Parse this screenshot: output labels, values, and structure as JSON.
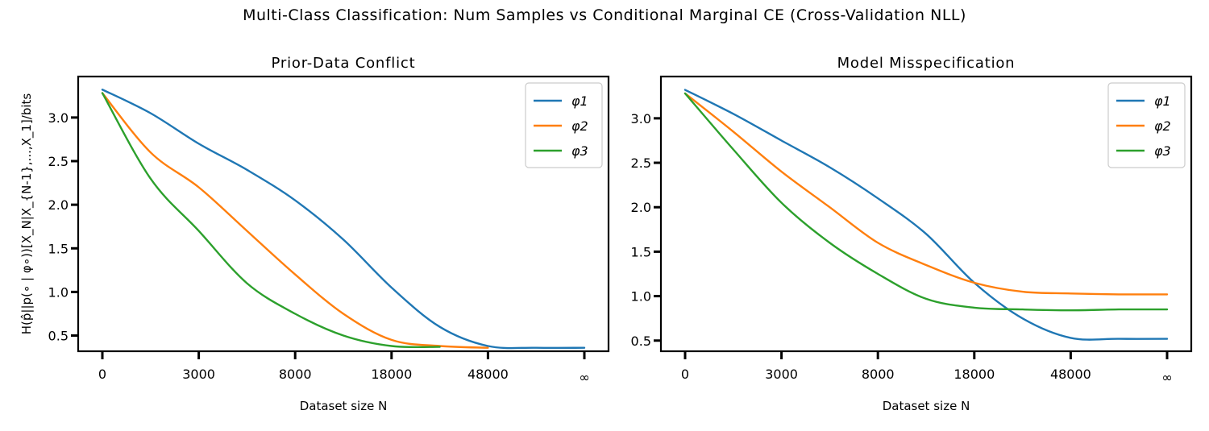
{
  "suptitle": "Multi-Class Classification: Num Samples vs Conditional Marginal CE (Cross-Validation NLL)",
  "colors": {
    "phi1": "#1f77b4",
    "phi2": "#ff7f0e",
    "phi3": "#2ca02c"
  },
  "chart_data": [
    {
      "type": "line",
      "title": "Prior-Data Conflict",
      "xlabel": "Dataset size N",
      "ylabel": "H(p̂||p(∘ | φ∘))[X_N|X_{N-1},...,X_1]/bits",
      "xticks": [
        "0",
        "3000",
        "8000",
        "18000",
        "48000",
        "∞"
      ],
      "yticks": [
        0.5,
        1.0,
        1.5,
        2.0,
        2.5,
        3.0
      ],
      "ylim": [
        0.32,
        3.47
      ],
      "legend_loc": "upper right",
      "x": [
        0,
        0.5,
        1,
        1.5,
        2,
        2.5,
        3,
        3.5,
        4,
        4.5,
        5
      ],
      "series": [
        {
          "name": "φ1",
          "values": [
            3.32,
            3.05,
            2.7,
            2.4,
            2.05,
            1.6,
            1.05,
            0.6,
            0.38,
            0.36,
            0.36
          ]
        },
        {
          "name": "φ2",
          "values": [
            3.28,
            2.6,
            2.2,
            1.7,
            1.2,
            0.75,
            0.45,
            0.38,
            0.36,
            null,
            null
          ]
        },
        {
          "name": "φ3",
          "values": [
            3.28,
            2.3,
            1.7,
            1.1,
            0.75,
            0.5,
            0.38,
            0.37,
            null,
            null,
            null
          ]
        }
      ]
    },
    {
      "type": "line",
      "title": "Model Misspecification",
      "xlabel": "Dataset size N",
      "ylabel": "",
      "xticks": [
        "0",
        "3000",
        "8000",
        "18000",
        "48000",
        "∞"
      ],
      "yticks": [
        0.5,
        1.0,
        1.5,
        2.0,
        2.5,
        3.0
      ],
      "ylim": [
        0.38,
        3.47
      ],
      "legend_loc": "upper right",
      "x": [
        0,
        0.5,
        1,
        1.5,
        2,
        2.5,
        3,
        3.5,
        4,
        4.5,
        5
      ],
      "series": [
        {
          "name": "φ1",
          "values": [
            3.32,
            3.05,
            2.75,
            2.45,
            2.1,
            1.7,
            1.15,
            0.75,
            0.53,
            0.52,
            0.52
          ]
        },
        {
          "name": "φ2",
          "values": [
            3.28,
            2.85,
            2.4,
            2.0,
            1.6,
            1.35,
            1.15,
            1.05,
            1.03,
            1.02,
            1.02
          ]
        },
        {
          "name": "φ3",
          "values": [
            3.28,
            2.65,
            2.05,
            1.6,
            1.25,
            0.97,
            0.87,
            0.85,
            0.84,
            0.85,
            0.85
          ]
        }
      ]
    }
  ]
}
